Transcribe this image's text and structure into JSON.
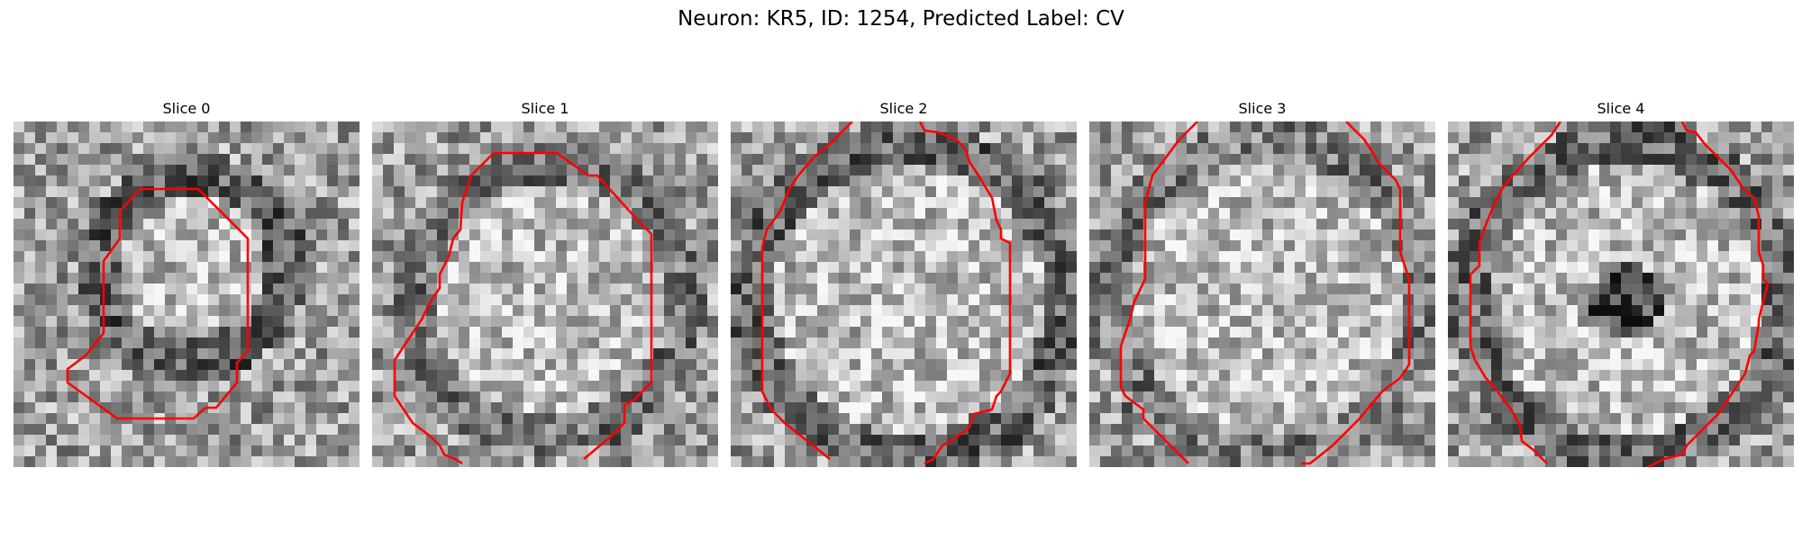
{
  "title": "Neuron: KR5, ID: 1254, Predicted Label: CV",
  "slices": [
    {
      "label": "Slice 0",
      "seed": 11,
      "dark_ring": 0.55,
      "dark_blob": 0.0
    },
    {
      "label": "Slice 1",
      "seed": 23,
      "dark_ring": 0.35,
      "dark_blob": 0.0
    },
    {
      "label": "Slice 2",
      "seed": 37,
      "dark_ring": 0.5,
      "dark_blob": 0.0
    },
    {
      "label": "Slice 3",
      "seed": 51,
      "dark_ring": 0.3,
      "dark_blob": 0.0
    },
    {
      "label": "Slice 4",
      "seed": 67,
      "dark_ring": 0.45,
      "dark_blob": 0.75
    }
  ],
  "colors": {
    "contour": "#ff0000",
    "background": "#ffffff"
  },
  "colormap": "gray"
}
